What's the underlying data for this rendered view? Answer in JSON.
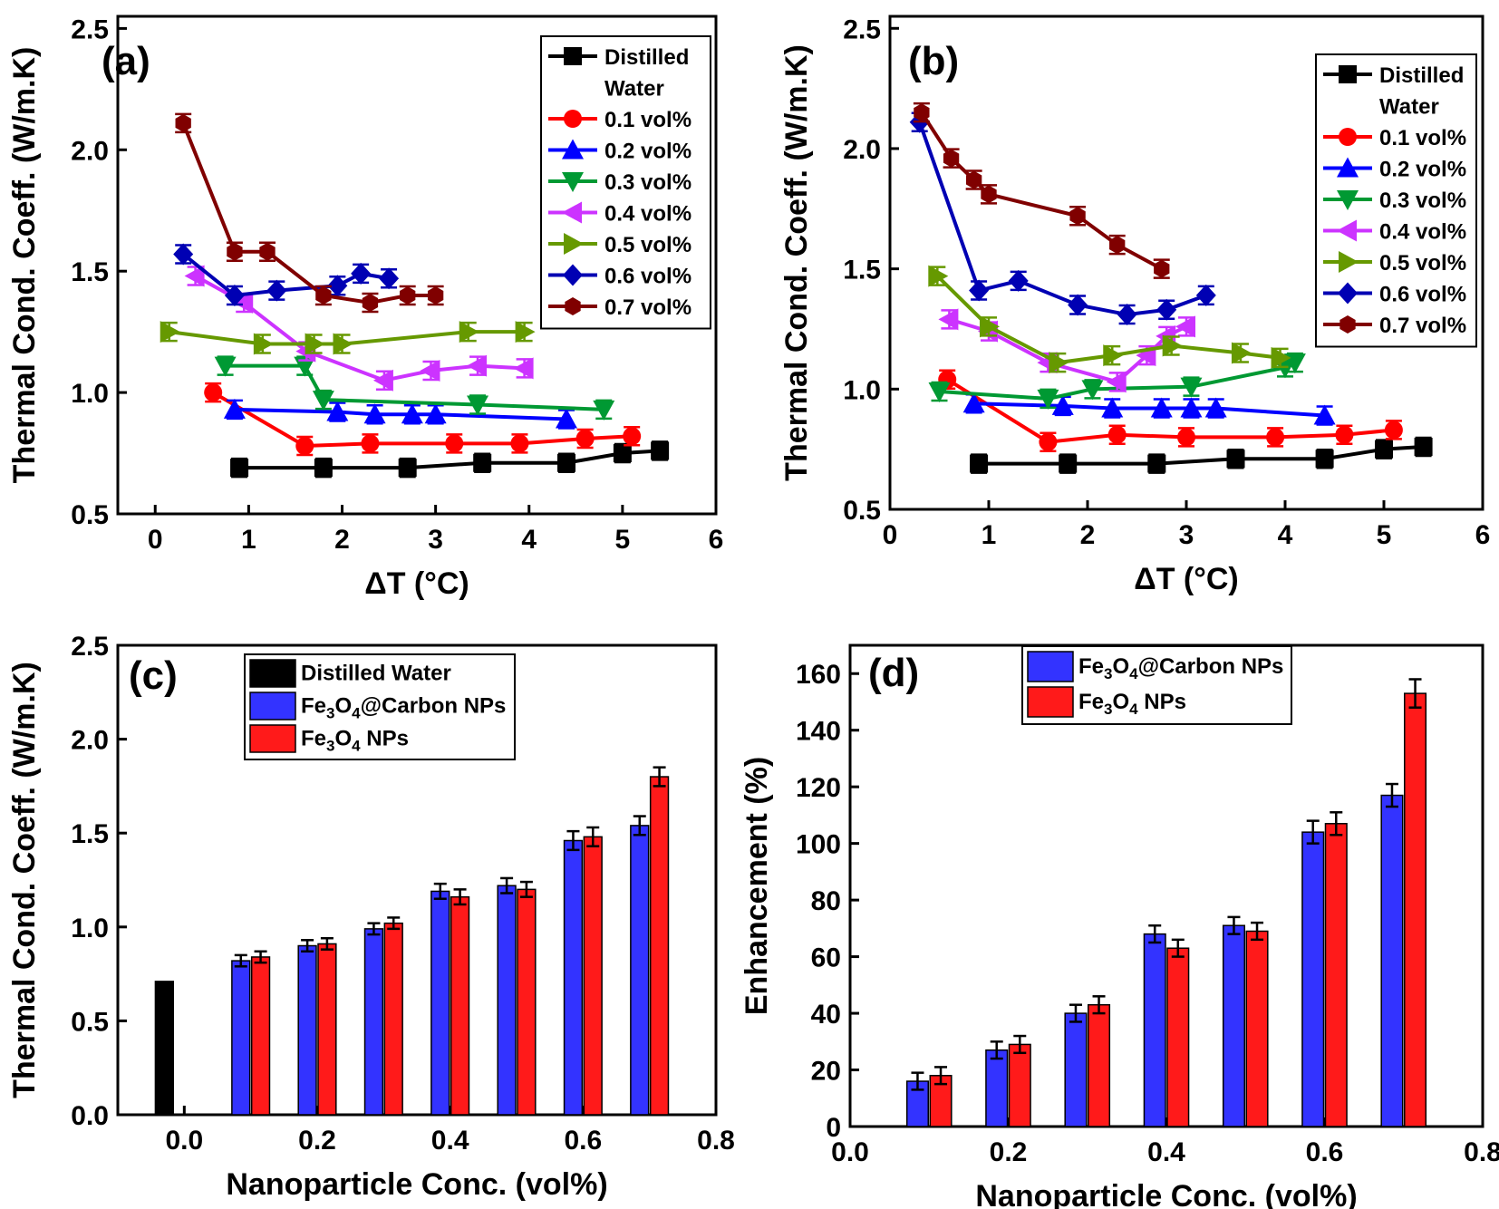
{
  "chart_data": [
    {
      "type": "line",
      "panel_label": "(a)",
      "xlabel": "ΔT (°C)",
      "ylabel": "Thermal Cond. Coeff. (W/m.K)",
      "xlim": [
        -0.4,
        6
      ],
      "ylim": [
        0.5,
        2.55
      ],
      "xticks": [
        "0",
        "1",
        "2",
        "3",
        "4",
        "5",
        "6"
      ],
      "yticks": [
        "0.5",
        "1.0",
        "1.5",
        "2.0",
        "2.5"
      ],
      "legend_position": "top-right",
      "series": [
        {
          "name": "Distilled Water",
          "color": "#000000",
          "marker": "square",
          "x": [
            0.9,
            1.8,
            2.7,
            3.5,
            4.4,
            5.0,
            5.4
          ],
          "y": [
            0.69,
            0.69,
            0.69,
            0.71,
            0.71,
            0.75,
            0.76
          ]
        },
        {
          "name": "0.1 vol%",
          "color": "#ff0000",
          "marker": "circle",
          "x": [
            0.62,
            1.6,
            2.3,
            3.2,
            3.9,
            4.6,
            5.1
          ],
          "y": [
            1.0,
            0.78,
            0.79,
            0.79,
            0.79,
            0.81,
            0.82
          ]
        },
        {
          "name": "0.2 vol%",
          "color": "#0000ff",
          "marker": "triangle-up",
          "x": [
            0.85,
            1.95,
            2.35,
            2.75,
            3.0,
            4.4
          ],
          "y": [
            0.93,
            0.92,
            0.91,
            0.91,
            0.91,
            0.89
          ]
        },
        {
          "name": "0.3 vol%",
          "color": "#009933",
          "marker": "triangle-down",
          "x": [
            0.75,
            1.6,
            1.8,
            3.45,
            4.8
          ],
          "y": [
            1.11,
            1.11,
            0.97,
            0.95,
            0.93
          ]
        },
        {
          "name": "0.4 vol%",
          "color": "#cc33ff",
          "marker": "triangle-left",
          "x": [
            0.43,
            0.95,
            1.62,
            2.45,
            2.95,
            3.45,
            3.95
          ],
          "y": [
            1.48,
            1.37,
            1.17,
            1.05,
            1.09,
            1.11,
            1.1
          ]
        },
        {
          "name": "0.5 vol%",
          "color": "#669900",
          "marker": "triangle-right",
          "x": [
            0.15,
            1.15,
            1.7,
            2.0,
            3.35,
            3.95
          ],
          "y": [
            1.25,
            1.2,
            1.2,
            1.2,
            1.25,
            1.25
          ]
        },
        {
          "name": "0.6 vol%",
          "color": "#0000b3",
          "marker": "diamond",
          "x": [
            0.3,
            0.85,
            1.3,
            1.95,
            2.2,
            2.5
          ],
          "y": [
            1.57,
            1.4,
            1.42,
            1.44,
            1.49,
            1.47
          ]
        },
        {
          "name": "0.7 vol%",
          "color": "#800000",
          "marker": "hexagon",
          "x": [
            0.3,
            0.85,
            1.2,
            1.8,
            2.3,
            2.7,
            3.0
          ],
          "y": [
            2.11,
            1.58,
            1.58,
            1.4,
            1.37,
            1.4,
            1.4
          ]
        }
      ]
    },
    {
      "type": "line",
      "panel_label": "(b)",
      "xlabel": "ΔT (°C)",
      "ylabel": "Thermal Cond. Coeff. (W/m.K)",
      "xlim": [
        0,
        6
      ],
      "ylim": [
        0.5,
        2.55
      ],
      "xticks": [
        "0",
        "1",
        "2",
        "3",
        "4",
        "5",
        "6"
      ],
      "yticks": [
        "0.5",
        "1.0",
        "1.5",
        "2.0",
        "2.5"
      ],
      "legend_position": "top-right",
      "series": [
        {
          "name": "Distilled Water",
          "color": "#000000",
          "marker": "square",
          "x": [
            0.9,
            1.8,
            2.7,
            3.5,
            4.4,
            5.0,
            5.4
          ],
          "y": [
            0.69,
            0.69,
            0.69,
            0.71,
            0.71,
            0.75,
            0.76
          ]
        },
        {
          "name": "0.1 vol%",
          "color": "#ff0000",
          "marker": "circle",
          "x": [
            0.58,
            1.6,
            2.3,
            3.0,
            3.9,
            4.6,
            5.1
          ],
          "y": [
            1.04,
            0.78,
            0.81,
            0.8,
            0.8,
            0.81,
            0.83
          ]
        },
        {
          "name": "0.2 vol%",
          "color": "#0000ff",
          "marker": "triangle-up",
          "x": [
            0.85,
            1.75,
            2.25,
            2.75,
            3.05,
            3.3,
            4.4
          ],
          "y": [
            0.94,
            0.93,
            0.92,
            0.92,
            0.92,
            0.92,
            0.89
          ]
        },
        {
          "name": "0.3 vol%",
          "color": "#009933",
          "marker": "triangle-down",
          "x": [
            0.5,
            1.6,
            2.05,
            3.05,
            4.0,
            4.1
          ],
          "y": [
            0.99,
            0.96,
            1.0,
            1.01,
            1.09,
            1.11
          ]
        },
        {
          "name": "0.4 vol%",
          "color": "#cc33ff",
          "marker": "triangle-left",
          "x": [
            0.6,
            1.0,
            1.6,
            2.3,
            2.6,
            2.8,
            3.0
          ],
          "y": [
            1.29,
            1.24,
            1.11,
            1.03,
            1.14,
            1.22,
            1.26
          ]
        },
        {
          "name": "0.5 vol%",
          "color": "#669900",
          "marker": "triangle-right",
          "x": [
            0.48,
            1.0,
            1.7,
            2.25,
            2.85,
            3.55,
            3.95
          ],
          "y": [
            1.47,
            1.26,
            1.11,
            1.14,
            1.18,
            1.15,
            1.13
          ]
        },
        {
          "name": "0.6 vol%",
          "color": "#0000b3",
          "marker": "diamond",
          "x": [
            0.3,
            0.9,
            1.3,
            1.9,
            2.4,
            2.8,
            3.2
          ],
          "y": [
            2.11,
            1.41,
            1.45,
            1.35,
            1.31,
            1.33,
            1.39
          ]
        },
        {
          "name": "0.7 vol%",
          "color": "#800000",
          "marker": "hexagon",
          "x": [
            0.32,
            0.62,
            0.85,
            1.0,
            1.9,
            2.3,
            2.75
          ],
          "y": [
            2.15,
            1.96,
            1.87,
            1.81,
            1.72,
            1.6,
            1.5
          ]
        }
      ]
    },
    {
      "type": "bar",
      "panel_label": "(c)",
      "xlabel": "Nanoparticle Conc. (vol%)",
      "ylabel": "Thermal Cond. Coeff. (W/m.K)",
      "xlim": [
        -0.1,
        0.8
      ],
      "ylim": [
        0,
        2.5
      ],
      "xticks": [
        "0.0",
        "0.2",
        "0.4",
        "0.6",
        "0.8"
      ],
      "yticks": [
        "0.0",
        "0.5",
        "1.0",
        "1.5",
        "2.0",
        "2.5"
      ],
      "legend_position": "top-left",
      "categories": [
        0,
        0.1,
        0.2,
        0.3,
        0.4,
        0.5,
        0.6,
        0.7
      ],
      "series": [
        {
          "name": "Distilled Water",
          "color": "#000000",
          "x": [
            -0.03
          ],
          "values": [
            0.71
          ]
        },
        {
          "name": "Fe3O4@Carbon NPs",
          "color": "#3333ff",
          "x": [
            0.1,
            0.2,
            0.3,
            0.4,
            0.5,
            0.6,
            0.7
          ],
          "values": [
            0.82,
            0.9,
            0.99,
            1.19,
            1.22,
            1.46,
            1.54
          ],
          "errors": [
            0.03,
            0.03,
            0.03,
            0.04,
            0.04,
            0.05,
            0.05
          ]
        },
        {
          "name": "Fe3O4 NPs",
          "color": "#ff1a1a",
          "x": [
            0.1,
            0.2,
            0.3,
            0.4,
            0.5,
            0.6,
            0.7
          ],
          "values": [
            0.84,
            0.91,
            1.02,
            1.16,
            1.2,
            1.48,
            1.8
          ],
          "errors": [
            0.03,
            0.03,
            0.03,
            0.04,
            0.04,
            0.05,
            0.05
          ]
        }
      ]
    },
    {
      "type": "bar",
      "panel_label": "(d)",
      "xlabel": "Nanoparticle Conc. (vol%)",
      "ylabel": "Enhancement (%)",
      "xlim": [
        0,
        0.8
      ],
      "ylim": [
        0,
        170
      ],
      "xticks": [
        "0.0",
        "0.2",
        "0.4",
        "0.6",
        "0.8"
      ],
      "yticks": [
        "0",
        "20",
        "40",
        "60",
        "80",
        "100",
        "120",
        "140",
        "160"
      ],
      "legend_position": "top-left",
      "categories": [
        0.1,
        0.2,
        0.3,
        0.4,
        0.5,
        0.6,
        0.7
      ],
      "series": [
        {
          "name": "Fe3O4@Carbon NPs",
          "color": "#3333ff",
          "x": [
            0.1,
            0.2,
            0.3,
            0.4,
            0.5,
            0.6,
            0.7
          ],
          "values": [
            16,
            27,
            40,
            68,
            71,
            104,
            117
          ],
          "errors": [
            3,
            3,
            3,
            3,
            3,
            4,
            4
          ]
        },
        {
          "name": "Fe3O4 NPs",
          "color": "#ff1a1a",
          "x": [
            0.1,
            0.2,
            0.3,
            0.4,
            0.5,
            0.6,
            0.7
          ],
          "values": [
            18,
            29,
            43,
            63,
            69,
            107,
            153
          ],
          "errors": [
            3,
            3,
            3,
            3,
            3,
            4,
            5
          ]
        }
      ]
    }
  ]
}
